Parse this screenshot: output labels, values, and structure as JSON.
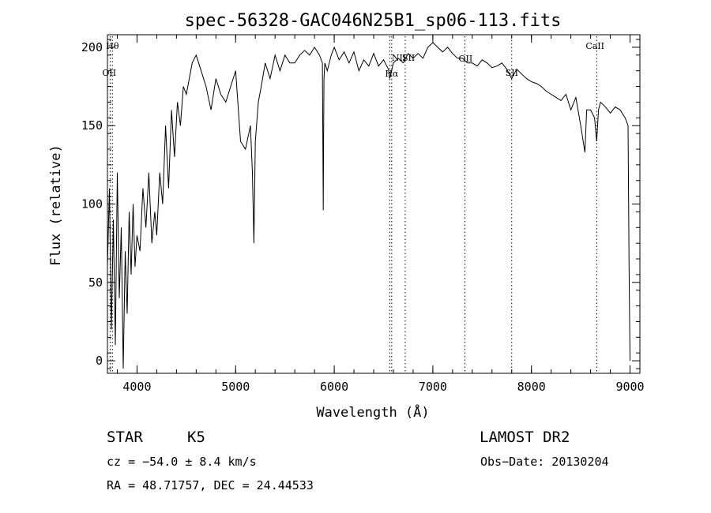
{
  "chart_data": {
    "type": "line",
    "title": "spec-56328-GAC046N25B1_sp06-113.fits",
    "xlabel": "Wavelength (Å)",
    "ylabel": "Flux (relative)",
    "xlim": [
      3700,
      9100
    ],
    "ylim": [
      -8,
      208
    ],
    "xticks": [
      4000,
      5000,
      6000,
      7000,
      8000,
      9000
    ],
    "yticks": [
      0,
      50,
      100,
      150,
      200
    ],
    "grid": false,
    "legend": "none",
    "series": [
      {
        "x": [
          3700,
          3720,
          3740,
          3760,
          3780,
          3800,
          3820,
          3840,
          3860,
          3880,
          3900,
          3920,
          3940,
          3960,
          3980,
          4000,
          4030,
          4060,
          4090,
          4120,
          4150,
          4180,
          4200,
          4230,
          4260,
          4290,
          4320,
          4350,
          4380,
          4410,
          4440,
          4470,
          4500,
          4530,
          4560,
          4600,
          4650,
          4700,
          4750,
          4800,
          4850,
          4900,
          4950,
          5000,
          5050,
          5100,
          5150,
          5170,
          5185,
          5200,
          5230,
          5260,
          5300,
          5350,
          5400,
          5450,
          5500,
          5550,
          5600,
          5650,
          5700,
          5750,
          5800,
          5850,
          5880,
          5889,
          5892,
          5896,
          5905,
          5930,
          5970,
          6000,
          6050,
          6100,
          6150,
          6200,
          6250,
          6300,
          6350,
          6400,
          6450,
          6500,
          6550,
          6563,
          6600,
          6650,
          6700,
          6750,
          6800,
          6850,
          6900,
          6950,
          7000,
          7050,
          7100,
          7150,
          7200,
          7250,
          7300,
          7350,
          7400,
          7450,
          7500,
          7550,
          7600,
          7650,
          7700,
          7750,
          7800,
          7850,
          7900,
          7950,
          8000,
          8050,
          8100,
          8150,
          8200,
          8250,
          8300,
          8350,
          8400,
          8450,
          8500,
          8542,
          8560,
          8600,
          8640,
          8662,
          8680,
          8700,
          8750,
          8800,
          8850,
          8900,
          8950,
          8980,
          8990,
          9000
        ],
        "y": [
          60,
          110,
          20,
          90,
          10,
          120,
          40,
          85,
          -5,
          70,
          30,
          95,
          55,
          100,
          60,
          80,
          70,
          110,
          85,
          120,
          75,
          95,
          80,
          120,
          100,
          150,
          110,
          160,
          130,
          165,
          150,
          175,
          170,
          180,
          190,
          195,
          185,
          175,
          160,
          180,
          170,
          165,
          175,
          185,
          140,
          135,
          150,
          120,
          75,
          140,
          165,
          175,
          190,
          180,
          195,
          185,
          195,
          190,
          190,
          195,
          198,
          195,
          200,
          195,
          190,
          96,
          140,
          180,
          190,
          185,
          195,
          200,
          192,
          197,
          190,
          197,
          185,
          192,
          188,
          196,
          188,
          192,
          186,
          180,
          190,
          193,
          190,
          196,
          193,
          196,
          193,
          200,
          203,
          200,
          197,
          200,
          196,
          193,
          193,
          190,
          190,
          188,
          192,
          190,
          187,
          188,
          190,
          186,
          180,
          186,
          183,
          180,
          178,
          177,
          175,
          172,
          170,
          168,
          166,
          170,
          160,
          168,
          150,
          133,
          160,
          160,
          155,
          140,
          160,
          165,
          162,
          158,
          162,
          160,
          155,
          150,
          60,
          0
        ],
        "label_lines": false
      }
    ],
    "reference_lines": [
      {
        "name": "Hθ",
        "x": 3750
      },
      {
        "name": "OII",
        "x": 3727
      },
      {
        "name": "Hα",
        "x": 6563
      },
      {
        "name": "NII",
        "x": 6583
      },
      {
        "name": "SII",
        "x": 6720
      },
      {
        "name": "OII",
        "x": 7325
      },
      {
        "name": "SII",
        "x": 7800
      },
      {
        "name": "CaII",
        "x": 8662
      }
    ]
  },
  "info": {
    "class_label": "STAR",
    "subclass": "K5",
    "cz": "cz = −54.0 ± 8.4 km/s",
    "radec": "RA =  48.71757, DEC =  24.44533",
    "survey": "LAMOST DR2",
    "obs_date": "Obs−Date: 20130204"
  }
}
